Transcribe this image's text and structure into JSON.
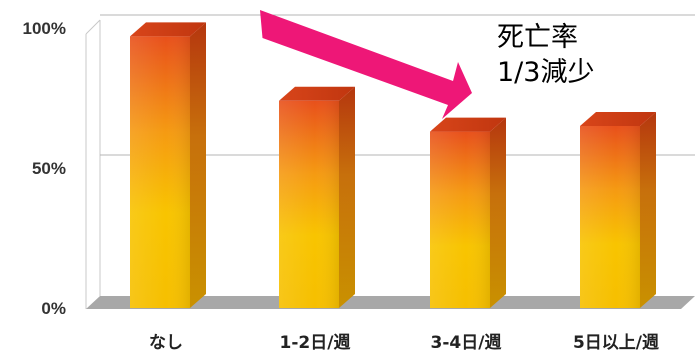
{
  "chart_data": {
    "type": "bar",
    "categories": [
      "なし",
      "1-2日/週",
      "3-4日/週",
      "5日以上/週"
    ],
    "values": [
      97,
      74,
      63,
      65
    ],
    "ylim": [
      0,
      100
    ],
    "yticks": [
      0,
      50,
      100
    ],
    "ytick_labels": [
      "0%",
      "50%",
      "100%"
    ],
    "title": "",
    "xlabel": "",
    "ylabel": "",
    "grid": true,
    "style": "3d"
  },
  "annotation": {
    "line1": "死亡率",
    "line2": "1/3減少",
    "arrow_color": "#ee1777"
  },
  "colors": {
    "bar_top": "#e8501b",
    "bar_mid": "#f59a12",
    "bar_bottom": "#f8c400",
    "floor": "#a8a8a8"
  }
}
